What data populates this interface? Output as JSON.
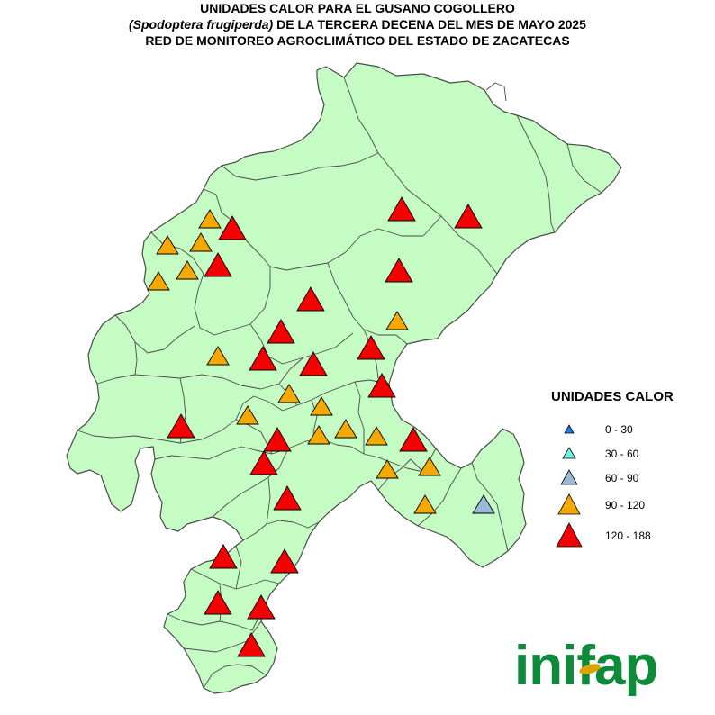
{
  "title": {
    "line1": "UNIDADES CALOR PARA EL GUSANO COGOLLERO",
    "line2_species": "(Spodoptera frugiperda)",
    "line2_rest": " DE LA TERCERA DECENA DEL MES DE MAYO 2025",
    "line3": "RED DE MONITOREO AGROCLIMÁTICO DEL ESTADO DE ZACATECAS"
  },
  "colors": {
    "land": "#c4fcc4",
    "border": "#4a4a4a",
    "class_0_30": "#1f78e8",
    "class_30_60": "#6ff2e4",
    "class_60_90": "#9cb8d8",
    "class_90_120": "#f5a800",
    "class_120_188": "#f40000",
    "logo_green": "#0f8a3a",
    "logo_gold": "#d9a400"
  },
  "legend": {
    "title": "UNIDADES CALOR",
    "items": [
      {
        "label": "0 - 30",
        "class": "c0",
        "color": "#1f78e8"
      },
      {
        "label": "30 - 60",
        "class": "c1",
        "color": "#6ff2e4"
      },
      {
        "label": "60 - 90",
        "class": "c2",
        "color": "#9cb8d8"
      },
      {
        "label": "90 - 120",
        "class": "c3",
        "color": "#f5a800"
      },
      {
        "label": "120 - 188",
        "class": "c4",
        "color": "#f40000"
      }
    ]
  },
  "logo": {
    "text": "inifap"
  }
}
